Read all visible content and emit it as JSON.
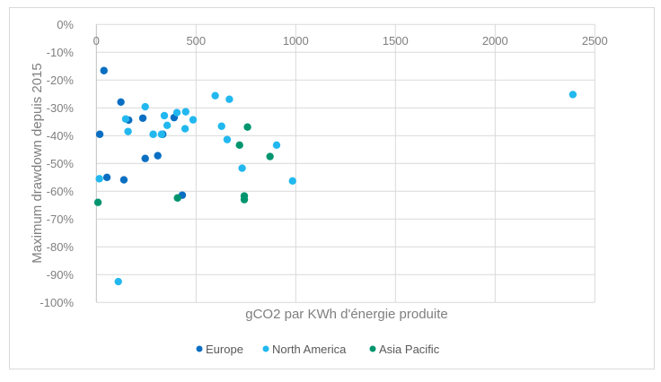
{
  "chart_data": {
    "type": "scatter",
    "title": "",
    "xlabel": "gCO2 par KWh d'énergie produite",
    "ylabel": "Maximum drawdown depuis 2015",
    "xlim": [
      0,
      2500
    ],
    "ylim": [
      -100,
      0
    ],
    "x_ticks": [
      "0",
      "500",
      "1000",
      "1500",
      "2000",
      "2500"
    ],
    "x_tick_values": [
      0,
      500,
      1000,
      1500,
      2000,
      2500
    ],
    "y_ticks": [
      "0%",
      "-10%",
      "-20%",
      "-30%",
      "-40%",
      "-50%",
      "-60%",
      "-70%",
      "-80%",
      "-90%",
      "-100%"
    ],
    "y_tick_values": [
      0,
      -10,
      -20,
      -30,
      -40,
      -50,
      -60,
      -70,
      -80,
      -90,
      -100
    ],
    "grid": true,
    "legend_position": "bottom",
    "series": [
      {
        "name": "Europe",
        "color": "#0a6fc2",
        "points": [
          [
            38,
            -16.6
          ],
          [
            123,
            -27.9
          ],
          [
            162,
            -34.4
          ],
          [
            233,
            -33.7
          ],
          [
            390,
            -33.5
          ],
          [
            17,
            -39.5
          ],
          [
            333,
            -39.5
          ],
          [
            245,
            -48.2
          ],
          [
            308,
            -47.2
          ],
          [
            53,
            -55.0
          ],
          [
            138,
            -55.9
          ],
          [
            431,
            -61.4
          ]
        ]
      },
      {
        "name": "North America",
        "color": "#22b8ef",
        "points": [
          [
            245,
            -29.6
          ],
          [
            147,
            -34.0
          ],
          [
            341,
            -32.8
          ],
          [
            404,
            -31.7
          ],
          [
            448,
            -31.4
          ],
          [
            485,
            -34.3
          ],
          [
            355,
            -36.3
          ],
          [
            445,
            -37.5
          ],
          [
            159,
            -38.5
          ],
          [
            285,
            -39.5
          ],
          [
            327,
            -39.5
          ],
          [
            15,
            -55.5
          ],
          [
            110,
            -92.5
          ],
          [
            596,
            -25.6
          ],
          [
            667,
            -26.9
          ],
          [
            628,
            -36.6
          ],
          [
            656,
            -41.4
          ],
          [
            904,
            -43.4
          ],
          [
            731,
            -51.7
          ],
          [
            984,
            -56.3
          ],
          [
            2390,
            -25.2
          ]
        ]
      },
      {
        "name": "Asia Pacific",
        "color": "#00956e",
        "points": [
          [
            8,
            -64.0
          ],
          [
            407,
            -62.4
          ],
          [
            758,
            -36.9
          ],
          [
            718,
            -43.4
          ],
          [
            871,
            -47.5
          ],
          [
            742,
            -61.7
          ],
          [
            742,
            -63.0
          ]
        ]
      }
    ]
  }
}
